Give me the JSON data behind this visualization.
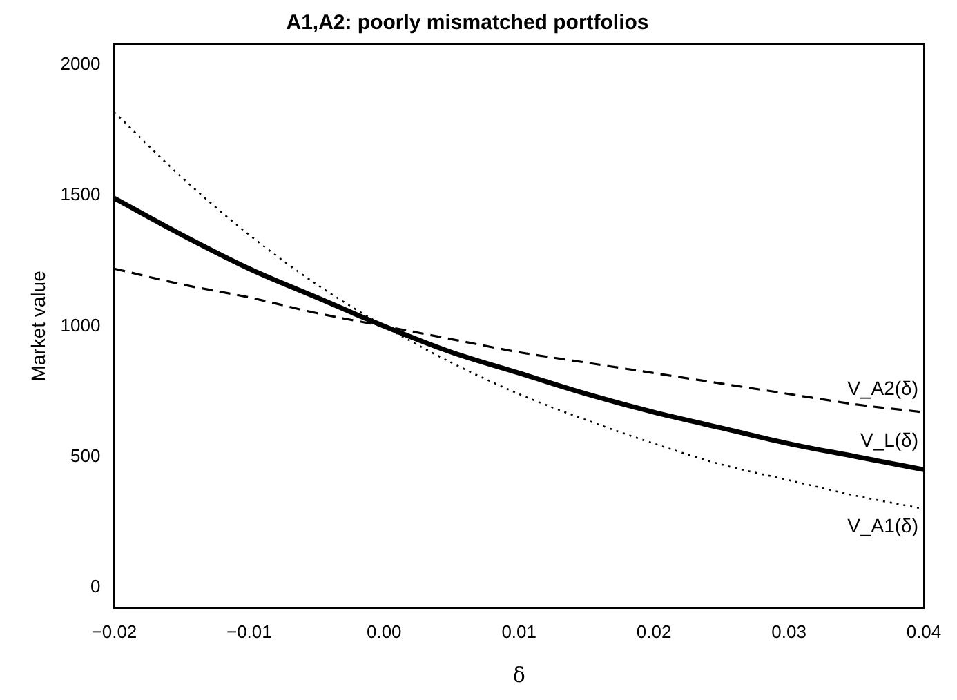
{
  "chart_data": {
    "type": "line",
    "title": "A1,A2: poorly mismatched portfolios",
    "xlabel": "δ",
    "ylabel": "Market value",
    "x": [
      -0.02,
      -0.015,
      -0.01,
      -0.005,
      0,
      0.005,
      0.01,
      0.015,
      0.02,
      0.025,
      0.03,
      0.035,
      0.04
    ],
    "series": [
      {
        "name": "V_L(δ)",
        "color": "#000000",
        "line_style": "solid",
        "values": [
          1490,
          1350,
          1220,
          1110,
          1000,
          900,
          820,
          740,
          670,
          610,
          550,
          500,
          450
        ]
      },
      {
        "name": "V_A1(δ)",
        "color": "#000000",
        "line_style": "dotted",
        "values": [
          1820,
          1570,
          1350,
          1160,
          1000,
          860,
          740,
          640,
          550,
          470,
          410,
          350,
          300
        ]
      },
      {
        "name": "V_A2(δ)",
        "color": "#000000",
        "line_style": "dashed",
        "values": [
          1220,
          1160,
          1110,
          1050,
          1000,
          950,
          900,
          860,
          820,
          780,
          740,
          700,
          670
        ]
      }
    ],
    "xlim": [
      -0.02,
      0.04
    ],
    "xticks": [
      {
        "value": -0.02,
        "label": "−0.02"
      },
      {
        "value": -0.01,
        "label": "−0.01"
      },
      {
        "value": 0,
        "label": "0.00"
      },
      0.01,
      0.02,
      0.03,
      0.04
    ],
    "ylim": [
      -80,
      2080
    ],
    "yticks": [
      0,
      500,
      1000,
      1500,
      2000
    ],
    "grid": false,
    "legend": false,
    "marker": "none"
  }
}
